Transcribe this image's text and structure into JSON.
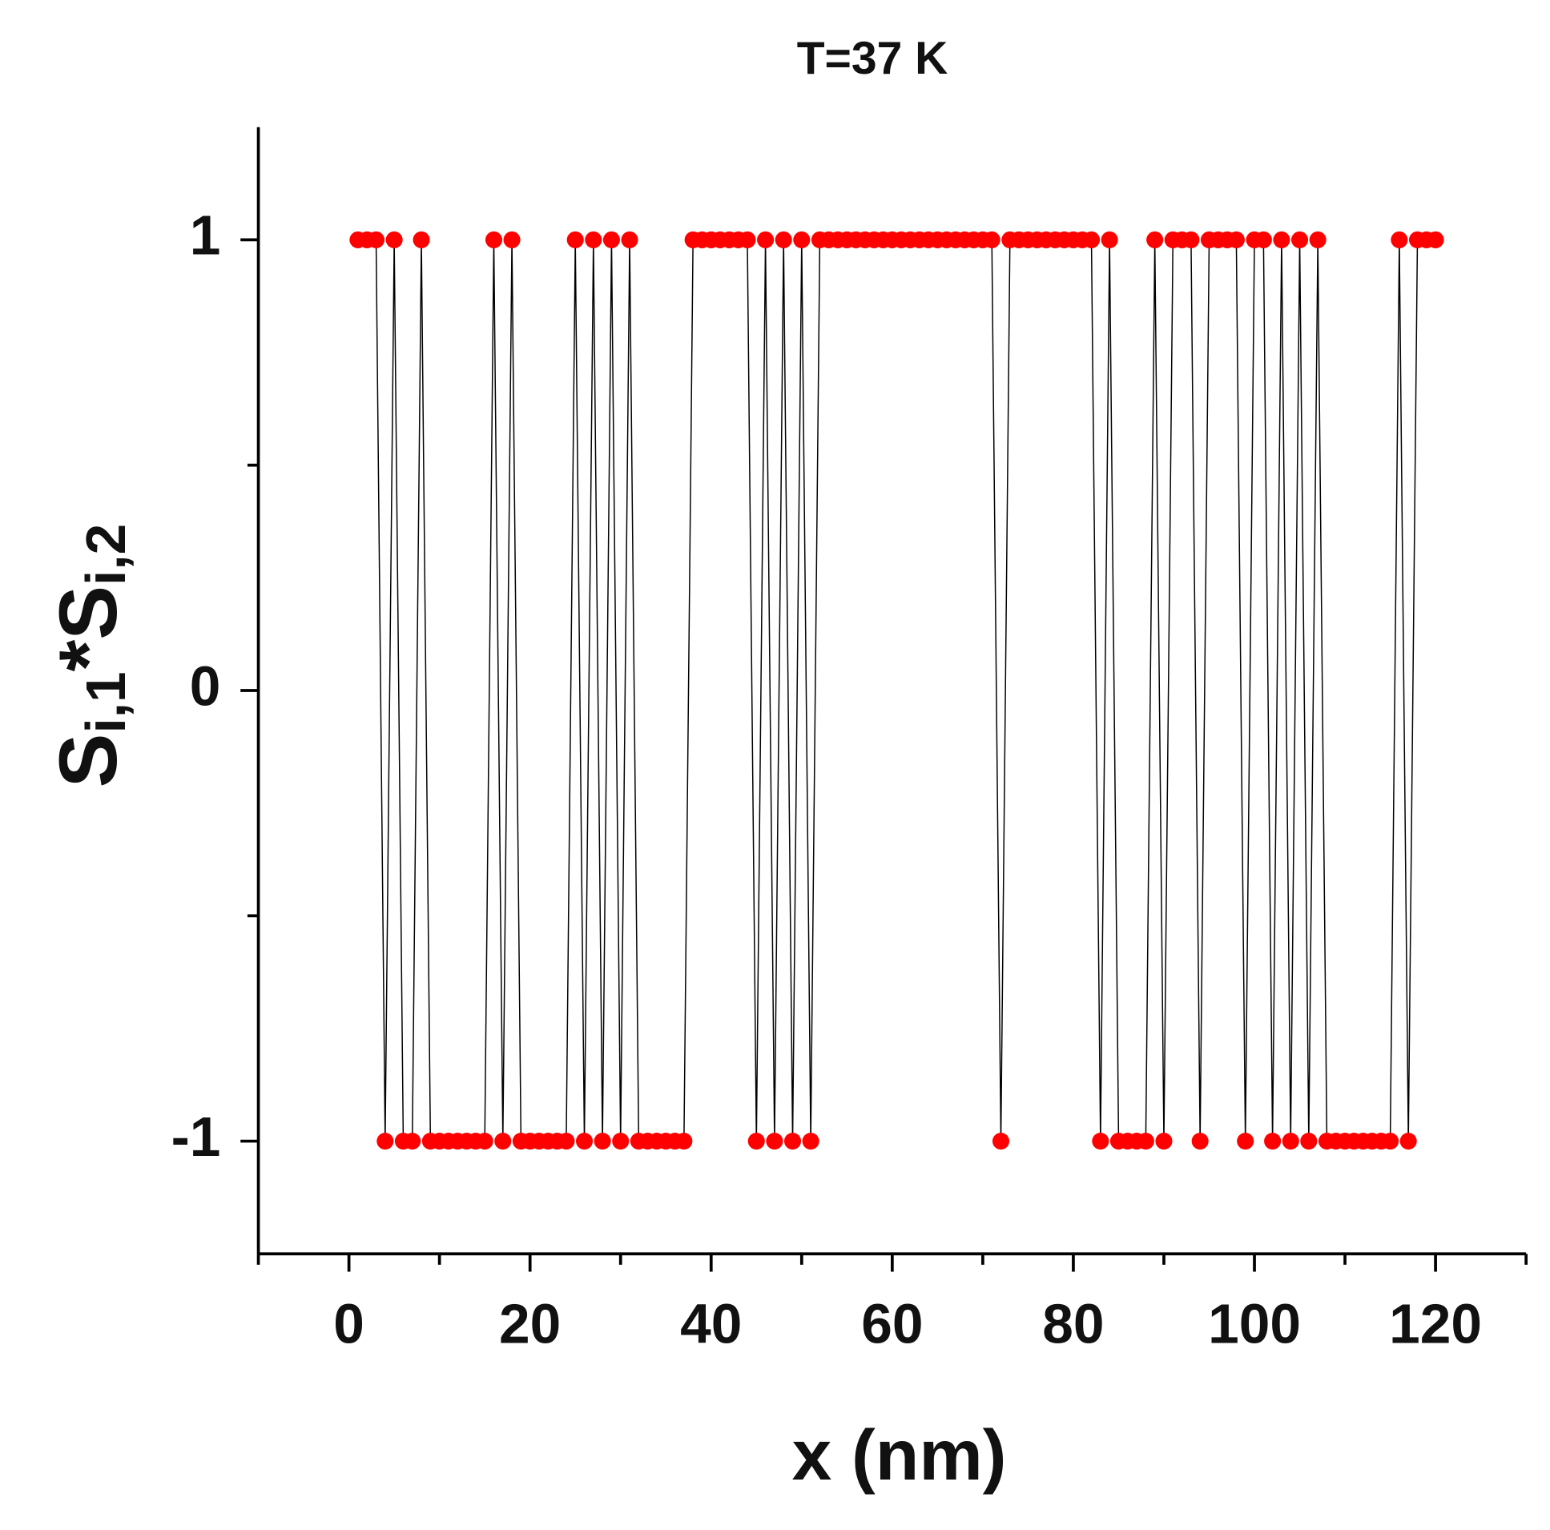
{
  "chart_data": {
    "type": "line",
    "title": "T=37 K",
    "xlabel": "x (nm)",
    "ylabel": [
      {
        "text": "S"
      },
      {
        "text": "i,1",
        "sub": true
      },
      {
        "text": "*S"
      },
      {
        "text": "i,2",
        "sub": true
      }
    ],
    "x": [
      1,
      2,
      3,
      4,
      5,
      6,
      7,
      8,
      9,
      10,
      11,
      12,
      13,
      14,
      15,
      16,
      17,
      18,
      19,
      20,
      21,
      22,
      23,
      24,
      25,
      26,
      27,
      28,
      29,
      30,
      31,
      32,
      33,
      34,
      35,
      36,
      37,
      38,
      39,
      40,
      41,
      42,
      43,
      44,
      45,
      46,
      47,
      48,
      49,
      50,
      51,
      52,
      53,
      54,
      55,
      56,
      57,
      58,
      59,
      60,
      61,
      62,
      63,
      64,
      65,
      66,
      67,
      68,
      69,
      70,
      71,
      72,
      73,
      74,
      75,
      76,
      77,
      78,
      79,
      80,
      81,
      82,
      83,
      84,
      85,
      86,
      87,
      88,
      89,
      90,
      91,
      92,
      93,
      94,
      95,
      96,
      97,
      98,
      99,
      100,
      101,
      102,
      103,
      104,
      105,
      106,
      107,
      108,
      109,
      110,
      111,
      112,
      113,
      114,
      115,
      116,
      117,
      118,
      119,
      120
    ],
    "values": [
      1,
      1,
      1,
      -1,
      1,
      -1,
      -1,
      1,
      -1,
      -1,
      -1,
      -1,
      -1,
      -1,
      -1,
      1,
      -1,
      1,
      -1,
      -1,
      -1,
      -1,
      -1,
      -1,
      1,
      -1,
      1,
      -1,
      1,
      -1,
      1,
      -1,
      -1,
      -1,
      -1,
      -1,
      -1,
      1,
      1,
      1,
      1,
      1,
      1,
      1,
      -1,
      1,
      -1,
      1,
      -1,
      1,
      -1,
      1,
      1,
      1,
      1,
      1,
      1,
      1,
      1,
      1,
      1,
      1,
      1,
      1,
      1,
      1,
      1,
      1,
      1,
      1,
      1,
      -1,
      1,
      1,
      1,
      1,
      1,
      1,
      1,
      1,
      1,
      1,
      -1,
      1,
      -1,
      -1,
      -1,
      -1,
      1,
      -1,
      1,
      1,
      1,
      -1,
      1,
      1,
      1,
      1,
      -1,
      1,
      1,
      -1,
      1,
      -1,
      1,
      -1,
      1,
      -1,
      -1,
      -1,
      -1,
      -1,
      -1,
      -1,
      -1,
      1,
      -1,
      1,
      1,
      1
    ],
    "color": "#ff0000",
    "line_color": "#000000",
    "xlim": [
      -10,
      130
    ],
    "ylim": [
      -1.25,
      1.25
    ],
    "xticks": [
      0,
      20,
      40,
      60,
      80,
      100,
      120
    ],
    "xminor_ticks": [
      -10,
      10,
      30,
      50,
      70,
      90,
      110,
      130
    ],
    "yticks": [
      -1,
      0,
      1
    ],
    "yminor_ticks": [
      -0.5,
      0.5
    ]
  }
}
